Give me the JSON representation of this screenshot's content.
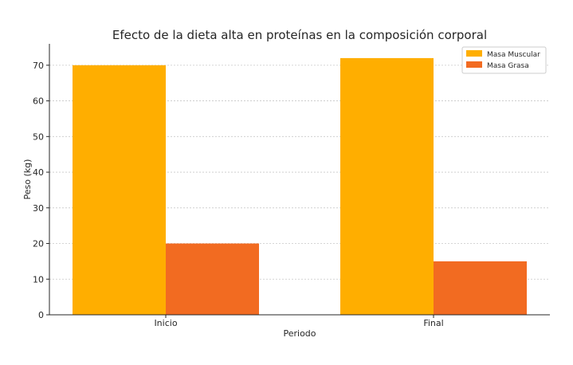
{
  "chart_data": {
    "type": "bar",
    "title": "Efecto de la dieta alta en proteínas en la composición corporal",
    "xlabel": "Periodo",
    "ylabel": "Peso (kg)",
    "categories": [
      "Inicio",
      "Final"
    ],
    "series": [
      {
        "name": "Masa Muscular",
        "values": [
          70,
          72
        ],
        "color": "#FFAE00"
      },
      {
        "name": "Masa Grasa",
        "values": [
          20,
          15
        ],
        "color": "#F26B21"
      }
    ],
    "ylim": [
      0,
      76
    ],
    "yticks": [
      0,
      10,
      20,
      30,
      40,
      50,
      60,
      70
    ],
    "grid": "horizontal-dashed",
    "legend_position": "top-right"
  }
}
